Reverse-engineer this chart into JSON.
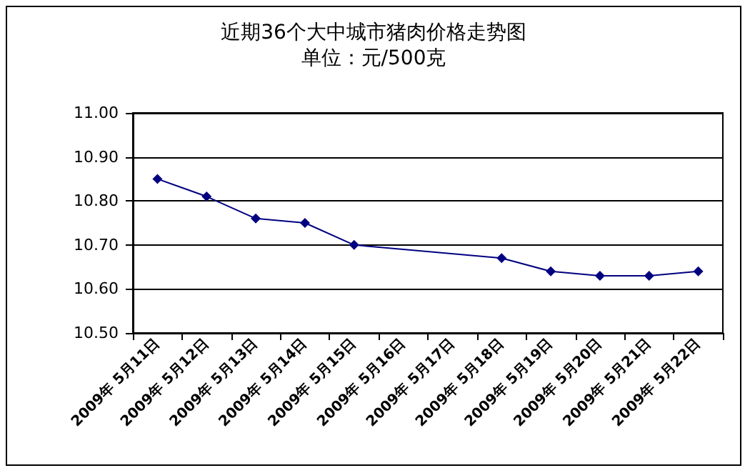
{
  "chart_data": {
    "type": "line",
    "title": "近期36个大中城市猪肉价格走势图",
    "subtitle": "单位：元/500克",
    "categories": [
      "2009年 5月11日",
      "2009年 5月12日",
      "2009年 5月13日",
      "2009年 5月14日",
      "2009年 5月15日",
      "2009年 5月16日",
      "2009年 5月17日",
      "2009年 5月18日",
      "2009年 5月19日",
      "2009年 5月20日",
      "2009年 5月21日",
      "2009年 5月22日"
    ],
    "series": [
      {
        "color": "#000080",
        "values": [
          10.85,
          10.81,
          10.76,
          10.75,
          10.7,
          null,
          null,
          10.67,
          10.64,
          10.63,
          10.63,
          10.64
        ]
      }
    ],
    "ylim": [
      10.5,
      11.0
    ],
    "yticks": [
      {
        "value": 10.5,
        "label": "10.50"
      },
      {
        "value": 10.6,
        "label": "10.60"
      },
      {
        "value": 10.7,
        "label": "10.70"
      },
      {
        "value": 10.8,
        "label": "10.80"
      },
      {
        "value": 10.9,
        "label": "10.90"
      },
      {
        "value": 11.0,
        "label": "11.00"
      }
    ],
    "grid": "y",
    "marker": "diamond",
    "line_style": "solid"
  }
}
